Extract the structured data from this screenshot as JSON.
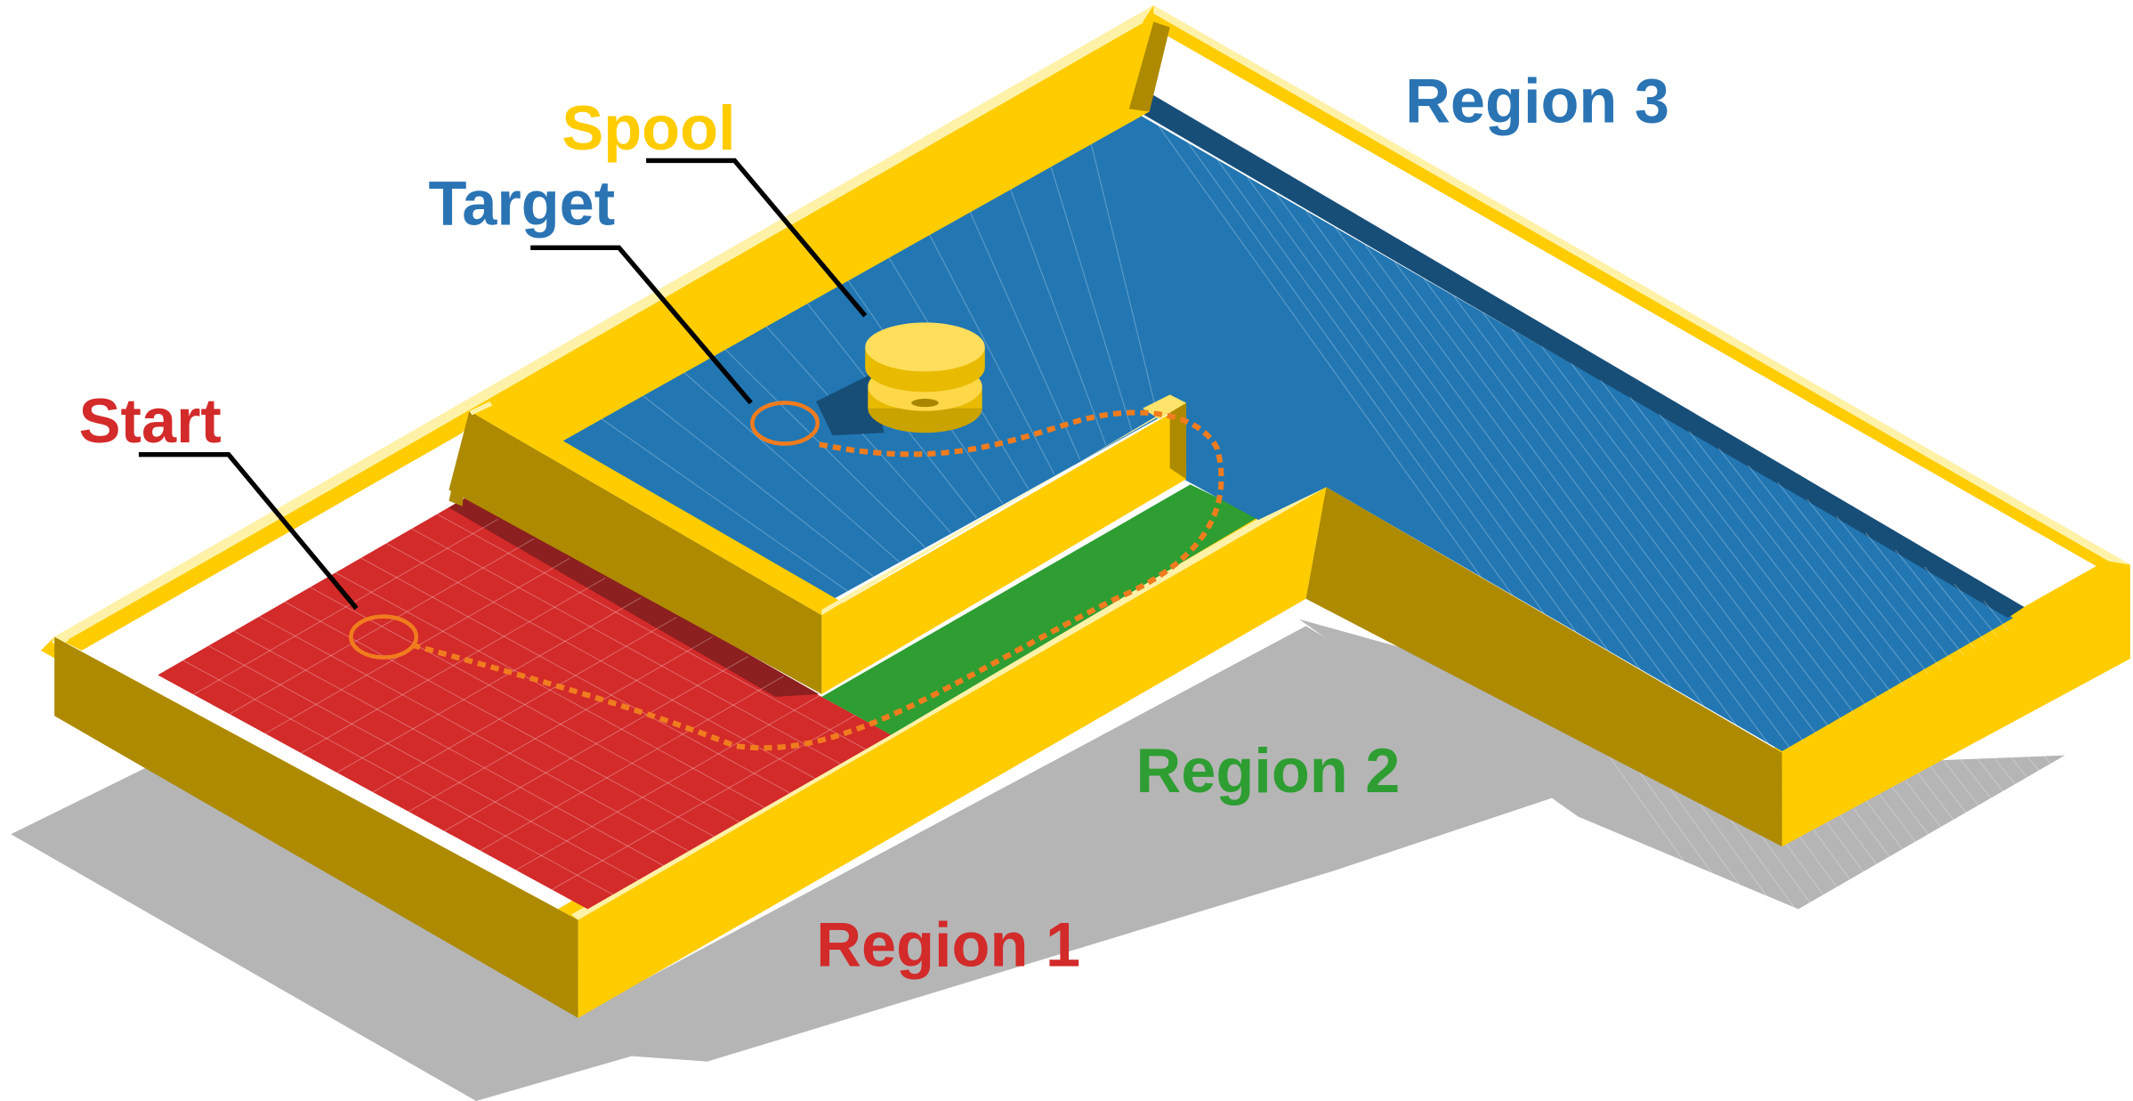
{
  "labels": {
    "spool": "Spool",
    "target": "Target",
    "start": "Start",
    "region1": "Region 1",
    "region2": "Region 2",
    "region3": "Region 3"
  },
  "colors": {
    "region1": "#d32a2a",
    "region2": "#2e9e32",
    "region3": "#2277b3",
    "region3_label": "#2a74b4",
    "wall_top": "#ffcc00",
    "wall_front": "#ad8a00",
    "wall_edge": "#fff2a8",
    "path": "#f07c1e",
    "spool": "#ffd84a",
    "shadow": "#b0b0b0",
    "leader": "#000000"
  }
}
